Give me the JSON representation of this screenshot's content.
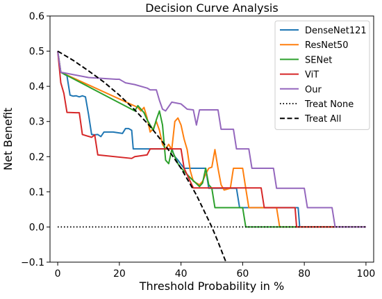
{
  "chart_data": {
    "type": "line",
    "title": "Decision Curve Analysis",
    "xlabel": "Threshold Probability in %",
    "ylabel": "Net Benefit",
    "xlim": [
      -2.5,
      102.5
    ],
    "ylim": [
      -0.1,
      0.6
    ],
    "xticks": [
      0,
      20,
      40,
      60,
      80,
      100
    ],
    "yticks": [
      -0.1,
      0.0,
      0.1,
      0.2,
      0.3,
      0.4,
      0.5,
      0.6
    ],
    "xtick_labels": [
      "0",
      "20",
      "40",
      "60",
      "80",
      "100"
    ],
    "ytick_labels": [
      "−0.1",
      "0.0",
      "0.1",
      "0.2",
      "0.3",
      "0.4",
      "0.5",
      "0.6"
    ],
    "grid": false,
    "legend_position": "top-right",
    "series": [
      {
        "name": "DenseNet121",
        "color": "#1f77b4",
        "style": "solid",
        "points": [
          [
            0,
            0.5
          ],
          [
            1,
            0.44
          ],
          [
            3,
            0.43
          ],
          [
            4,
            0.375
          ],
          [
            5,
            0.372
          ],
          [
            6,
            0.373
          ],
          [
            7,
            0.37
          ],
          [
            8,
            0.373
          ],
          [
            9,
            0.37
          ],
          [
            10,
            0.32
          ],
          [
            11,
            0.263
          ],
          [
            12,
            0.262
          ],
          [
            13,
            0.263
          ],
          [
            14,
            0.257
          ],
          [
            15,
            0.27
          ],
          [
            18,
            0.27
          ],
          [
            21,
            0.266
          ],
          [
            22,
            0.28
          ],
          [
            23,
            0.28
          ],
          [
            24,
            0.275
          ],
          [
            24.5,
            0.222
          ],
          [
            30,
            0.222
          ],
          [
            36,
            0.222
          ],
          [
            37,
            0.225
          ],
          [
            37.5,
            0.21
          ],
          [
            38,
            0.2
          ],
          [
            39,
            0.19
          ],
          [
            40,
            0.178
          ],
          [
            41,
            0.167
          ],
          [
            48,
            0.167
          ],
          [
            49,
            0.11
          ],
          [
            58,
            0.11
          ],
          [
            59,
            0.055
          ],
          [
            78,
            0.055
          ],
          [
            78.5,
            0.0
          ],
          [
            100,
            0.0
          ]
        ]
      },
      {
        "name": "ResNet50",
        "color": "#ff7f0e",
        "style": "solid",
        "points": [
          [
            0,
            0.5
          ],
          [
            1,
            0.44
          ],
          [
            26,
            0.34
          ],
          [
            27,
            0.33
          ],
          [
            28,
            0.34
          ],
          [
            29,
            0.31
          ],
          [
            30,
            0.27
          ],
          [
            31,
            0.28
          ],
          [
            32,
            0.3
          ],
          [
            33,
            0.275
          ],
          [
            34,
            0.235
          ],
          [
            35,
            0.222
          ],
          [
            36,
            0.235
          ],
          [
            37,
            0.22
          ],
          [
            38,
            0.3
          ],
          [
            39,
            0.31
          ],
          [
            40,
            0.29
          ],
          [
            41,
            0.25
          ],
          [
            42,
            0.22
          ],
          [
            43,
            0.16
          ],
          [
            44,
            0.13
          ],
          [
            46,
            0.12
          ],
          [
            47,
            0.13
          ],
          [
            48,
            0.15
          ],
          [
            49,
            0.167
          ],
          [
            50,
            0.17
          ],
          [
            51,
            0.22
          ],
          [
            52,
            0.167
          ],
          [
            53,
            0.12
          ],
          [
            54,
            0.105
          ],
          [
            56,
            0.11
          ],
          [
            57,
            0.167
          ],
          [
            60,
            0.167
          ],
          [
            61,
            0.11
          ],
          [
            62,
            0.055
          ],
          [
            71,
            0.055
          ],
          [
            72,
            0.0
          ],
          [
            100,
            0.0
          ]
        ]
      },
      {
        "name": "SENet",
        "color": "#2ca02c",
        "style": "solid",
        "points": [
          [
            0,
            0.5
          ],
          [
            1,
            0.44
          ],
          [
            25,
            0.33
          ],
          [
            26,
            0.345
          ],
          [
            27,
            0.335
          ],
          [
            28,
            0.325
          ],
          [
            29,
            0.305
          ],
          [
            30,
            0.29
          ],
          [
            31,
            0.275
          ],
          [
            32,
            0.305
          ],
          [
            33,
            0.33
          ],
          [
            34,
            0.29
          ],
          [
            35,
            0.19
          ],
          [
            36,
            0.18
          ],
          [
            37,
            0.22
          ],
          [
            38,
            0.2
          ],
          [
            39,
            0.18
          ],
          [
            40,
            0.168
          ],
          [
            43,
            0.14
          ],
          [
            46,
            0.115
          ],
          [
            47,
            0.125
          ],
          [
            48,
            0.167
          ],
          [
            49,
            0.12
          ],
          [
            50,
            0.11
          ],
          [
            51,
            0.055
          ],
          [
            60,
            0.055
          ],
          [
            61,
            0.0
          ],
          [
            100,
            0.0
          ]
        ]
      },
      {
        "name": "ViT",
        "color": "#d62728",
        "style": "solid",
        "points": [
          [
            0,
            0.5
          ],
          [
            1,
            0.41
          ],
          [
            2,
            0.38
          ],
          [
            3,
            0.326
          ],
          [
            6,
            0.325
          ],
          [
            7,
            0.325
          ],
          [
            8,
            0.263
          ],
          [
            11,
            0.255
          ],
          [
            12,
            0.262
          ],
          [
            13,
            0.205
          ],
          [
            24,
            0.195
          ],
          [
            25,
            0.2
          ],
          [
            29,
            0.205
          ],
          [
            30,
            0.222
          ],
          [
            40,
            0.222
          ],
          [
            41,
            0.167
          ],
          [
            44,
            0.111
          ],
          [
            60,
            0.111
          ],
          [
            66,
            0.111
          ],
          [
            67,
            0.055
          ],
          [
            77,
            0.055
          ],
          [
            77.5,
            0.0
          ],
          [
            100,
            0.0
          ]
        ]
      },
      {
        "name": "Our",
        "color": "#9467bd",
        "style": "solid",
        "points": [
          [
            0,
            0.5
          ],
          [
            1,
            0.44
          ],
          [
            10,
            0.425
          ],
          [
            19,
            0.42
          ],
          [
            20,
            0.42
          ],
          [
            21,
            0.415
          ],
          [
            22,
            0.41
          ],
          [
            25,
            0.405
          ],
          [
            29,
            0.395
          ],
          [
            30,
            0.39
          ],
          [
            31,
            0.39
          ],
          [
            32,
            0.39
          ],
          [
            33,
            0.36
          ],
          [
            34,
            0.335
          ],
          [
            35,
            0.33
          ],
          [
            37,
            0.355
          ],
          [
            40,
            0.35
          ],
          [
            42,
            0.335
          ],
          [
            44,
            0.333
          ],
          [
            45,
            0.29
          ],
          [
            46,
            0.333
          ],
          [
            52,
            0.333
          ],
          [
            53,
            0.278
          ],
          [
            57,
            0.278
          ],
          [
            58,
            0.222
          ],
          [
            59,
            0.222
          ],
          [
            60,
            0.222
          ],
          [
            62,
            0.222
          ],
          [
            63,
            0.167
          ],
          [
            66,
            0.167
          ],
          [
            70,
            0.167
          ],
          [
            71,
            0.11
          ],
          [
            80,
            0.11
          ],
          [
            81,
            0.055
          ],
          [
            89,
            0.055
          ],
          [
            90,
            0.0
          ],
          [
            100,
            0.0
          ]
        ]
      },
      {
        "name": "Treat None",
        "color": "#000000",
        "style": "dotted",
        "points": [
          [
            0,
            0.0
          ],
          [
            100,
            0.0
          ]
        ]
      },
      {
        "name": "Treat All",
        "color": "#000000",
        "style": "dashed",
        "points": [
          [
            0,
            0.5
          ],
          [
            5,
            0.474
          ],
          [
            10,
            0.444
          ],
          [
            15,
            0.412
          ],
          [
            20,
            0.375
          ],
          [
            25,
            0.333
          ],
          [
            30,
            0.286
          ],
          [
            35,
            0.231
          ],
          [
            40,
            0.167
          ],
          [
            45,
            0.091
          ],
          [
            50,
            0.0
          ],
          [
            52,
            -0.042
          ],
          [
            54,
            -0.087
          ],
          [
            54.6,
            -0.1
          ]
        ]
      }
    ]
  }
}
